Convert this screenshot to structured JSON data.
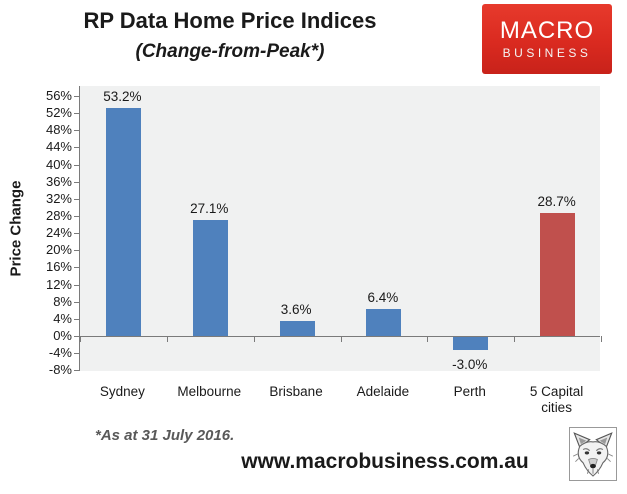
{
  "header": {
    "title": "RP Data Home Price Indices",
    "subtitle": "(Change-from-Peak*)",
    "logo": {
      "line1": "MACRO",
      "line2": "BUSINESS",
      "bg_color": "#da2a20",
      "text_color": "#ffffff"
    }
  },
  "chart_data": {
    "type": "bar",
    "title": "RP Data Home Price Indices",
    "subtitle": "(Change-from-Peak*)",
    "categories": [
      "Sydney",
      "Melbourne",
      "Brisbane",
      "Adelaide",
      "Perth",
      "5 Capital cities"
    ],
    "values": [
      53.2,
      27.1,
      3.6,
      6.4,
      -3.0,
      28.7
    ],
    "data_labels": [
      "53.2%",
      "27.1%",
      "3.6%",
      "6.4%",
      "-3.0%",
      "28.7%"
    ],
    "bar_colors": [
      "#4f81bd",
      "#4f81bd",
      "#4f81bd",
      "#4f81bd",
      "#4f81bd",
      "#c0504d"
    ],
    "xlabel": "",
    "ylabel": "Price Change",
    "ylim": [
      -8,
      56
    ],
    "ytick_step": 4,
    "ytick_values": [
      56,
      52,
      48,
      44,
      40,
      36,
      32,
      28,
      24,
      20,
      16,
      12,
      8,
      4,
      0,
      -4,
      -8
    ],
    "ytick_labels": [
      "56%",
      "52%",
      "48%",
      "44%",
      "40%",
      "36%",
      "32%",
      "28%",
      "24%",
      "20%",
      "16%",
      "12%",
      "8%",
      "4%",
      "0%",
      "-4%",
      "-8%"
    ],
    "grid": false,
    "legend": "none",
    "colors": {
      "plot_bg": "#f0f1f1",
      "axis_line": "#7a7a7a",
      "blue_series": "#4f81bd",
      "red_series": "#c0504d"
    }
  },
  "footer": {
    "footnote": "*As at 31 July 2016.",
    "website": "www.macrobusiness.com.au",
    "logo_icon": "wolf-logo"
  }
}
